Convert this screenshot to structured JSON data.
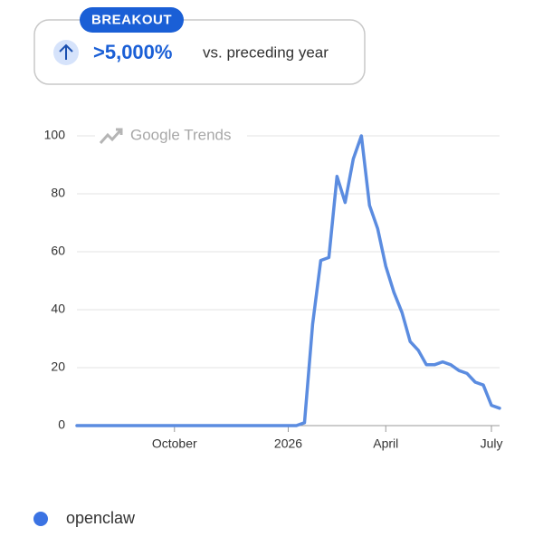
{
  "header": {
    "badge": "BREAKOUT",
    "change": ">5,000%",
    "comparison": "vs. preceding year"
  },
  "chart_data": {
    "type": "line",
    "watermark": "Google Trends",
    "categories": [
      null,
      null,
      null,
      null,
      null,
      null,
      null,
      null,
      null,
      null,
      null,
      null,
      "October",
      null,
      null,
      null,
      null,
      null,
      null,
      null,
      null,
      null,
      null,
      null,
      null,
      null,
      "2026",
      null,
      null,
      null,
      null,
      null,
      null,
      null,
      null,
      null,
      null,
      null,
      "April",
      null,
      null,
      null,
      null,
      null,
      null,
      null,
      null,
      null,
      null,
      null,
      null,
      "July",
      null
    ],
    "series": [
      {
        "name": "openclaw",
        "color": "#5b8ce0",
        "values": [
          0,
          0,
          0,
          0,
          0,
          0,
          0,
          0,
          0,
          0,
          0,
          0,
          0,
          0,
          0,
          0,
          0,
          0,
          0,
          0,
          0,
          0,
          0,
          0,
          0,
          0,
          0,
          0,
          1,
          35,
          57,
          58,
          86,
          77,
          92,
          100,
          76,
          68,
          55,
          46,
          39,
          29,
          26,
          21,
          21,
          22,
          21,
          19,
          18,
          15,
          14,
          7,
          6
        ]
      }
    ],
    "ylim": [
      0,
      100
    ],
    "yticks": [
      0,
      20,
      40,
      60,
      80,
      100
    ],
    "grid": true,
    "legend": "bottom-left"
  }
}
